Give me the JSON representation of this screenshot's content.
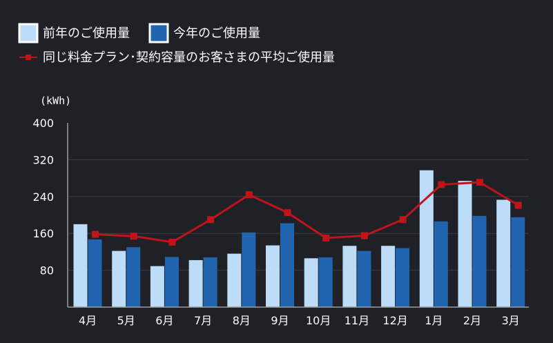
{
  "colors": {
    "background": "#1f2126",
    "prev_year": "#bcdcf8",
    "this_year": "#2164b0",
    "average": "#c0141b",
    "grid": "#3c3f45",
    "axis": "#9a9da3",
    "text": "#ffffff"
  },
  "chart_data": {
    "type": "bar",
    "unit_label": "(kWh)",
    "categories": [
      "4月",
      "5月",
      "6月",
      "7月",
      "8月",
      "9月",
      "10月",
      "11月",
      "12月",
      "1月",
      "2月",
      "3月"
    ],
    "series": [
      {
        "name": "前年のご使用量",
        "type": "bar",
        "values": [
          180,
          122,
          89,
          102,
          116,
          134,
          106,
          133,
          133,
          297,
          274,
          233
        ]
      },
      {
        "name": "今年のご使用量",
        "type": "bar",
        "values": [
          147,
          130,
          109,
          108,
          162,
          182,
          108,
          122,
          128,
          186,
          198,
          195
        ]
      },
      {
        "name": "同じ料金プラン･契約容量のお客さまの平均ご使用量",
        "type": "line",
        "values": [
          158,
          154,
          141,
          190,
          244,
          205,
          150,
          155,
          190,
          266,
          271,
          221
        ]
      }
    ],
    "ylim": [
      0,
      400
    ],
    "yticks": [
      80,
      160,
      240,
      320,
      400
    ],
    "grid": true,
    "legend_position": "top-left"
  }
}
